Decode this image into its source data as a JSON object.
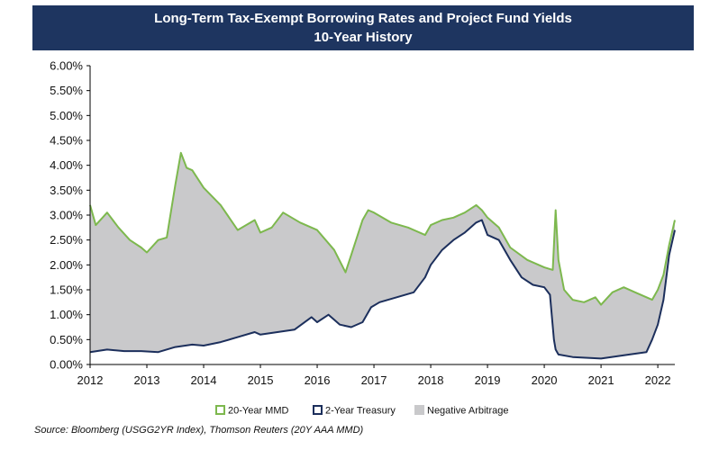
{
  "header": {
    "title_line1": "Long-Term Tax-Exempt Borrowing Rates and Project Fund Yields",
    "title_line2": "10-Year History"
  },
  "source_note": "Source: Bloomberg (USGG2YR Index), Thomson Reuters (20Y AAA MMD)",
  "chart_data": {
    "type": "area",
    "title": "Long-Term Tax-Exempt Borrowing Rates and Project Fund Yields",
    "subtitle": "10-Year History",
    "xlim": [
      2012,
      2022.35
    ],
    "ylim": [
      0,
      6
    ],
    "x_ticks": [
      2012,
      2013,
      2014,
      2015,
      2016,
      2017,
      2018,
      2019,
      2020,
      2021,
      2022
    ],
    "x_tick_labels": [
      "2012",
      "2013",
      "2014",
      "2015",
      "2016",
      "2017",
      "2018",
      "2019",
      "2020",
      "2021",
      "2022"
    ],
    "y_ticks": [
      0,
      0.5,
      1,
      1.5,
      2,
      2.5,
      3,
      3.5,
      4,
      4.5,
      5,
      5.5,
      6
    ],
    "y_tick_labels": [
      "0.00%",
      "0.50%",
      "1.00%",
      "1.50%",
      "2.00%",
      "2.50%",
      "3.00%",
      "3.50%",
      "4.00%",
      "4.50%",
      "5.00%",
      "5.50%",
      "6.00%"
    ],
    "legend_position": "bottom-center",
    "grid": false,
    "series": [
      {
        "name": "20-Year MMD",
        "color": "#7db84e",
        "x": [
          2012.0,
          2012.1,
          2012.3,
          2012.5,
          2012.7,
          2012.9,
          2013.0,
          2013.2,
          2013.35,
          2013.5,
          2013.6,
          2013.7,
          2013.8,
          2014.0,
          2014.3,
          2014.6,
          2014.9,
          2015.0,
          2015.2,
          2015.4,
          2015.7,
          2016.0,
          2016.3,
          2016.5,
          2016.6,
          2016.8,
          2016.9,
          2017.0,
          2017.3,
          2017.6,
          2017.9,
          2018.0,
          2018.2,
          2018.4,
          2018.6,
          2018.8,
          2018.9,
          2019.0,
          2019.2,
          2019.4,
          2019.7,
          2019.9,
          2020.0,
          2020.15,
          2020.2,
          2020.25,
          2020.35,
          2020.5,
          2020.7,
          2020.9,
          2021.0,
          2021.2,
          2021.4,
          2021.6,
          2021.8,
          2021.9,
          2022.0,
          2022.1,
          2022.2,
          2022.3
        ],
        "values": [
          3.2,
          2.8,
          3.05,
          2.75,
          2.5,
          2.35,
          2.25,
          2.5,
          2.55,
          3.6,
          4.25,
          3.95,
          3.9,
          3.55,
          3.2,
          2.7,
          2.9,
          2.65,
          2.75,
          3.05,
          2.85,
          2.7,
          2.3,
          1.85,
          2.2,
          2.9,
          3.1,
          3.05,
          2.85,
          2.75,
          2.6,
          2.8,
          2.9,
          2.95,
          3.05,
          3.2,
          3.1,
          2.95,
          2.75,
          2.35,
          2.1,
          2.0,
          1.95,
          1.9,
          3.1,
          2.1,
          1.5,
          1.3,
          1.25,
          1.35,
          1.2,
          1.45,
          1.55,
          1.45,
          1.35,
          1.3,
          1.5,
          1.8,
          2.4,
          2.9
        ]
      },
      {
        "name": "2-Year Treasury",
        "color": "#1c2f5c",
        "x": [
          2012.0,
          2012.3,
          2012.6,
          2012.9,
          2013.2,
          2013.5,
          2013.8,
          2014.0,
          2014.3,
          2014.6,
          2014.9,
          2015.0,
          2015.3,
          2015.6,
          2015.9,
          2016.0,
          2016.2,
          2016.4,
          2016.6,
          2016.8,
          2016.95,
          2017.1,
          2017.4,
          2017.7,
          2017.9,
          2018.0,
          2018.2,
          2018.4,
          2018.6,
          2018.8,
          2018.9,
          2019.0,
          2019.2,
          2019.4,
          2019.6,
          2019.8,
          2020.0,
          2020.1,
          2020.17,
          2020.2,
          2020.25,
          2020.5,
          2021.0,
          2021.5,
          2021.8,
          2021.9,
          2022.0,
          2022.1,
          2022.2,
          2022.3
        ],
        "values": [
          0.25,
          0.3,
          0.27,
          0.27,
          0.25,
          0.35,
          0.4,
          0.38,
          0.45,
          0.55,
          0.65,
          0.6,
          0.65,
          0.7,
          0.95,
          0.85,
          1.0,
          0.8,
          0.75,
          0.85,
          1.15,
          1.25,
          1.35,
          1.45,
          1.75,
          2.0,
          2.3,
          2.5,
          2.65,
          2.85,
          2.9,
          2.6,
          2.5,
          2.1,
          1.75,
          1.6,
          1.55,
          1.4,
          0.5,
          0.3,
          0.2,
          0.15,
          0.12,
          0.2,
          0.25,
          0.5,
          0.8,
          1.3,
          2.2,
          2.7
        ]
      }
    ],
    "shaded_region": {
      "name": "Negative Arbitrage",
      "color": "#c9c9cb",
      "between": [
        "20-Year MMD",
        "2-Year Treasury"
      ]
    }
  }
}
